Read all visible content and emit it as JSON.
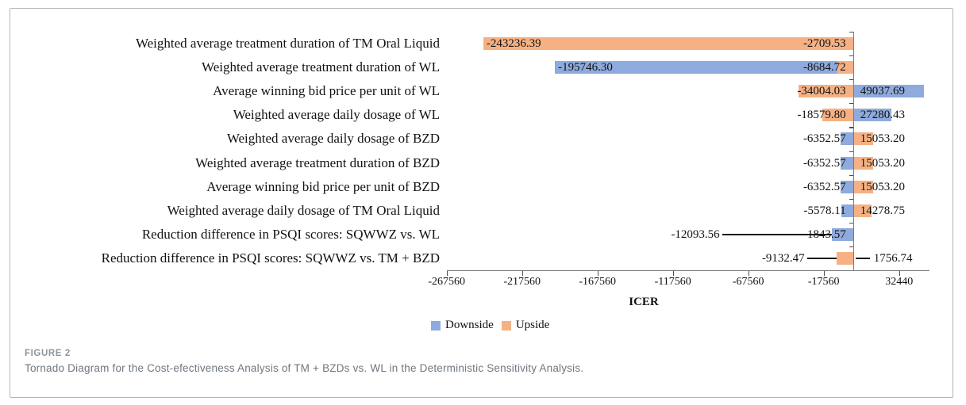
{
  "figure": {
    "caption_label": "FIGURE 2",
    "caption_text": "Tornado Diagram for the Cost-efectiveness Analysis of TM + BZDs vs. WL in the Deterministic Sensitivity Analysis."
  },
  "chart_data": {
    "type": "bar",
    "subtype": "tornado",
    "title": "",
    "xlabel": "ICER",
    "ylabel": "",
    "xlim": [
      -267560,
      52440
    ],
    "base_value": 2440,
    "x_ticks": [
      -267560,
      -217560,
      -167560,
      -117560,
      -67560,
      -17560,
      32440
    ],
    "x_tick_labels": [
      "-267560",
      "-217560",
      "-167560",
      "-117560",
      "-67560",
      "-17560",
      "32440"
    ],
    "grid": false,
    "legend": {
      "position": "bottom",
      "entries": [
        {
          "name": "Downside",
          "color": "#8FAADC"
        },
        {
          "name": "Upside",
          "color": "#F5B183"
        }
      ]
    },
    "colors": {
      "downside": "#8FAADC",
      "upside": "#F5B183",
      "axis_line": "#7a7a7a",
      "tick_mark": "#4d4d4d",
      "leader_line": "#1a1a1a",
      "text": "#121212"
    },
    "rows": [
      {
        "category": "Weighted average treatment duration of TM Oral Liquid",
        "downside": -2709.53,
        "upside": -243236.39,
        "labels": [
          {
            "text": "-243236.39",
            "placement": "bar-tip"
          },
          {
            "text": "-2709.53",
            "placement": "axis-left"
          }
        ]
      },
      {
        "category": "Weighted average treatment duration of WL",
        "downside": -195746.3,
        "upside": -8684.72,
        "labels": [
          {
            "text": "-195746.30",
            "placement": "bar-tip"
          },
          {
            "text": "-8684.72",
            "placement": "axis-left"
          }
        ]
      },
      {
        "category": "Average winning bid price per unit of WL",
        "downside": 49037.69,
        "upside": -34004.03,
        "labels": [
          {
            "text": "-34004.03",
            "placement": "axis-left"
          },
          {
            "text": "49037.69",
            "placement": "axis-right"
          }
        ]
      },
      {
        "category": "Weighted average daily dosage of WL",
        "downside": 27280.43,
        "upside": -18579.8,
        "labels": [
          {
            "text": "-18579.80",
            "placement": "axis-left"
          },
          {
            "text": "27280.43",
            "placement": "axis-right"
          }
        ]
      },
      {
        "category": "Weighted average daily dosage of BZD",
        "downside": -6352.57,
        "upside": 15053.2,
        "labels": [
          {
            "text": "-6352.57",
            "placement": "axis-left"
          },
          {
            "text": "15053.20",
            "placement": "axis-right"
          }
        ]
      },
      {
        "category": "Weighted average treatment duration of BZD",
        "downside": -6352.57,
        "upside": 15053.2,
        "labels": [
          {
            "text": "-6352.57",
            "placement": "axis-left"
          },
          {
            "text": "15053.20",
            "placement": "axis-right"
          }
        ]
      },
      {
        "category": "Average winning bid price per unit of BZD",
        "downside": -6352.57,
        "upside": 15053.2,
        "labels": [
          {
            "text": "-6352.57",
            "placement": "axis-left"
          },
          {
            "text": "15053.20",
            "placement": "axis-right"
          }
        ]
      },
      {
        "category": "Weighted average daily dosage of TM Oral Liquid",
        "downside": -5578.11,
        "upside": 14278.75,
        "labels": [
          {
            "text": "-5578.11",
            "placement": "axis-left"
          },
          {
            "text": "14278.75",
            "placement": "axis-right"
          }
        ]
      },
      {
        "category": "Reduction difference in PSQI scores: SQWWZ vs. WL",
        "downside": -12093.56,
        "upside": 1843.57,
        "labels": [
          {
            "text": "-12093.56",
            "placement": "leader-left",
            "offset": 169
          },
          {
            "text": "1843.57",
            "placement": "axis-left"
          }
        ]
      },
      {
        "category": "Reduction difference in PSQI scores: SQWWZ vs. TM + BZD",
        "downside": 1756.74,
        "upside": -9132.47,
        "labels": [
          {
            "text": "-9132.47",
            "placement": "leader-left",
            "offset": 62
          },
          {
            "text": "1756.74",
            "placement": "leader-right",
            "offset": 25
          }
        ]
      }
    ]
  }
}
